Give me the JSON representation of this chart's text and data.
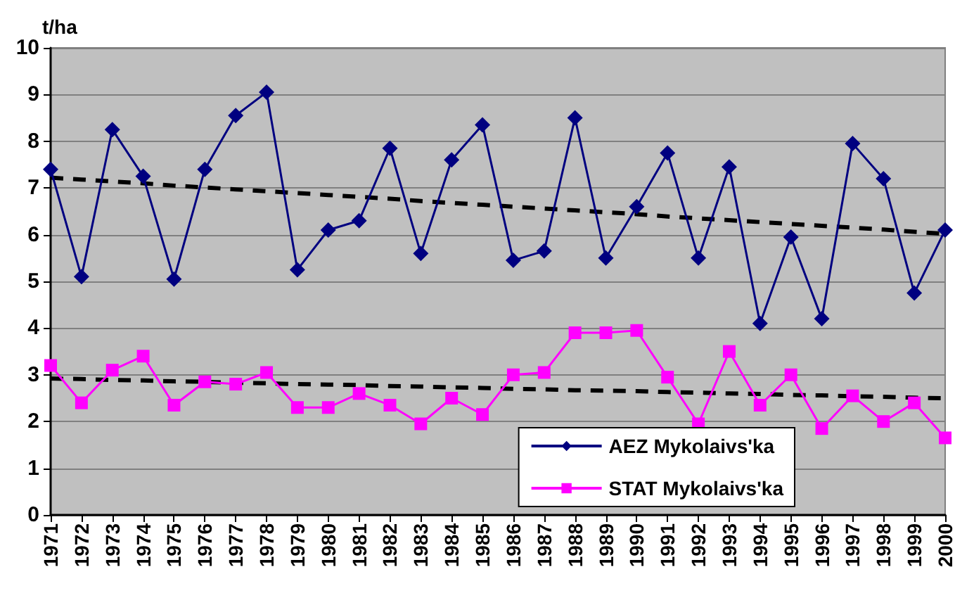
{
  "chart_data": {
    "type": "line",
    "ylabel": "t/ha",
    "categories": [
      "1971",
      "1972",
      "1973",
      "1974",
      "1975",
      "1976",
      "1977",
      "1978",
      "1979",
      "1980",
      "1981",
      "1982",
      "1983",
      "1984",
      "1985",
      "1986",
      "1987",
      "1988",
      "1989",
      "1990",
      "1991",
      "1992",
      "1993",
      "1994",
      "1995",
      "1996",
      "1997",
      "1998",
      "1999",
      "2000"
    ],
    "series": [
      {
        "name": "AEZ Mykolaivs'ka",
        "color": "#000080",
        "marker": "diamond",
        "values": [
          7.4,
          5.1,
          8.25,
          7.25,
          5.05,
          7.4,
          8.55,
          9.05,
          5.25,
          6.1,
          6.3,
          7.85,
          5.6,
          7.6,
          8.35,
          5.45,
          5.65,
          8.5,
          5.5,
          6.6,
          7.75,
          5.5,
          7.45,
          4.1,
          5.95,
          4.2,
          7.95,
          7.2,
          4.75,
          6.1
        ]
      },
      {
        "name": "STAT Mykolaivs'ka",
        "color": "#ff00ff",
        "marker": "square",
        "values": [
          3.2,
          2.4,
          3.1,
          3.4,
          2.35,
          2.85,
          2.8,
          3.05,
          2.3,
          2.3,
          2.6,
          2.35,
          1.95,
          2.5,
          2.15,
          3.0,
          3.05,
          3.9,
          3.9,
          3.95,
          2.95,
          1.95,
          3.5,
          2.35,
          3.0,
          1.85,
          2.55,
          2.0,
          2.4,
          1.65
        ]
      },
      {
        "color": "#000000",
        "marker": "none",
        "line_style": "dashed",
        "values": [
          7.22,
          7.18,
          7.14,
          7.1,
          7.05,
          7.01,
          6.97,
          6.93,
          6.89,
          6.85,
          6.81,
          6.77,
          6.72,
          6.68,
          6.64,
          6.6,
          6.56,
          6.52,
          6.48,
          6.44,
          6.39,
          6.35,
          6.31,
          6.27,
          6.23,
          6.19,
          6.15,
          6.11,
          6.06,
          6.02
        ]
      },
      {
        "color": "#000000",
        "marker": "none",
        "line_style": "dashed",
        "values": [
          2.92,
          2.91,
          2.89,
          2.88,
          2.86,
          2.85,
          2.83,
          2.82,
          2.8,
          2.79,
          2.78,
          2.76,
          2.75,
          2.73,
          2.72,
          2.7,
          2.69,
          2.67,
          2.66,
          2.65,
          2.63,
          2.62,
          2.6,
          2.59,
          2.57,
          2.56,
          2.54,
          2.53,
          2.51,
          2.5
        ]
      }
    ],
    "ylim": [
      0,
      10
    ],
    "yticks": [
      0,
      1,
      2,
      3,
      4,
      5,
      6,
      7,
      8,
      9,
      10
    ],
    "grid": "y",
    "legend": "bottom right"
  }
}
